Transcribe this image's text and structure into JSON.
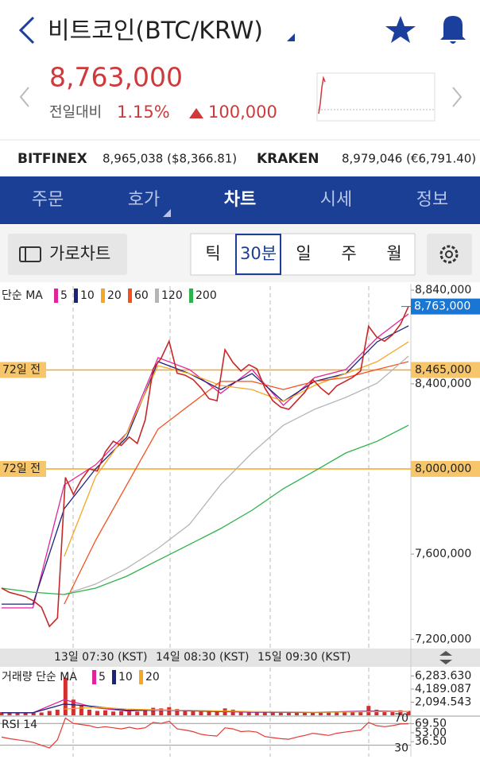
{
  "header": {
    "title": "비트코인(BTC/KRW)"
  },
  "price": {
    "value": "8,763,000",
    "change_label": "전일대비",
    "change_rate": "1.15%",
    "change_amount": "100,000"
  },
  "exchanges": [
    {
      "name": "BITFINEX",
      "price": "8,965,038 ($8,366.81)"
    },
    {
      "name": "KRAKEN",
      "price": "8,979,046 (€6,791.40)"
    }
  ],
  "tabs": [
    "주문",
    "호가",
    "차트",
    "시세",
    "정보"
  ],
  "toolbar": {
    "landscape": "가로차트",
    "periods": [
      "틱",
      "30분",
      "일",
      "주",
      "월"
    ]
  },
  "chart_data": [
    {
      "type": "line",
      "legend_title": "단순 MA",
      "price": {
        "color": "#c62828",
        "values": [
          7440000,
          7420000,
          7410000,
          7400000,
          7380000,
          7350000,
          7260000,
          7300000,
          7960000,
          7880000,
          7950000,
          8000000,
          7990000,
          8080000,
          8130000,
          8110000,
          8150000,
          8120000,
          8230000,
          8470000,
          8520000,
          8600000,
          8450000,
          8440000,
          8420000,
          8380000,
          8330000,
          8320000,
          8560000,
          8500000,
          8460000,
          8490000,
          8470000,
          8380000,
          8320000,
          8290000,
          8280000,
          8320000,
          8360000,
          8420000,
          8380000,
          8350000,
          8390000,
          8410000,
          8430000,
          8460000,
          8670000,
          8620000,
          8600000,
          8630000,
          8680000,
          8763000
        ]
      },
      "series": [
        {
          "name": "5",
          "color": "#e0249a",
          "values": [
            7347000,
            7347000,
            7925000,
            8019000,
            8168000,
            8523000,
            8467000,
            8355000,
            8467000,
            8299000,
            8429000,
            8467000,
            8616000,
            8728000
          ]
        },
        {
          "name": "10",
          "color": "#1a237e",
          "values": [
            7365000,
            7365000,
            7813000,
            8000000,
            8149000,
            8504000,
            8448000,
            8373000,
            8448000,
            8317000,
            8411000,
            8448000,
            8597000,
            8672000
          ]
        },
        {
          "name": "20",
          "color": "#f5a623",
          "values": [
            null,
            null,
            7589000,
            7963000,
            8168000,
            8485000,
            8448000,
            8392000,
            8373000,
            8317000,
            8392000,
            8448000,
            8504000,
            8597000
          ]
        },
        {
          "name": "60",
          "color": "#f4511e",
          "values": [
            null,
            null,
            7365000,
            7664000,
            7925000,
            8187000,
            8299000,
            8411000,
            8411000,
            8373000,
            8411000,
            8429000,
            8467000,
            8504000
          ]
        },
        {
          "name": "120",
          "color": "#b5b5b5",
          "values": [
            null,
            null,
            7410000,
            7459000,
            7533000,
            7627000,
            7739000,
            7926000,
            8075000,
            8205000,
            8280000,
            8336000,
            8403000,
            8530000
          ]
        },
        {
          "name": "200",
          "color": "#2db34a",
          "values": [
            7440000,
            7421000,
            7410000,
            7440000,
            7496000,
            7571000,
            7645000,
            7720000,
            7806000,
            7907000,
            7990000,
            8075000,
            8130000,
            8205000
          ]
        }
      ],
      "ylim": [
        7160000,
        8840000
      ],
      "yticks": [
        {
          "value": 8840000,
          "label": "8,840,000"
        },
        {
          "value": 8400000,
          "label": "8,400,000"
        },
        {
          "value": 7600000,
          "label": "7,600,000"
        },
        {
          "value": 7200000,
          "label": "7,200,000"
        }
      ],
      "reference_lines": [
        {
          "value": 8465000,
          "label": "8,465,000",
          "note": "72일 전"
        },
        {
          "value": 8000000,
          "label": "8,000,000",
          "note": "72일 전"
        }
      ],
      "current": {
        "value": 8763000,
        "label": "8,763,000"
      },
      "x_labels": [
        "13일 07:30 (KST)",
        "14일 08:30 (KST)",
        "15일 09:30 (KST)"
      ]
    },
    {
      "type": "bar",
      "legend_title": "거래량 단순 MA",
      "color": "#d32f2f",
      "values": [
        500,
        450,
        400,
        420,
        380,
        450,
        700,
        900,
        6000,
        2500,
        1500,
        900,
        700,
        800,
        600,
        650,
        700,
        600,
        800,
        1200,
        1100,
        1300,
        1000,
        800,
        700,
        650,
        600,
        700,
        1100,
        900,
        700,
        650,
        600,
        500,
        450,
        400,
        420,
        500,
        450,
        550,
        480,
        430,
        500,
        520,
        560,
        600,
        1500,
        900,
        700,
        650,
        800,
        700
      ],
      "series": [
        {
          "name": "5",
          "color": "#e0249a",
          "values": [
            400,
            400,
            2500,
            1200,
            700,
            900,
            700,
            600,
            500,
            500,
            450,
            600,
            700,
            600
          ]
        },
        {
          "name": "10",
          "color": "#1a237e",
          "values": [
            400,
            400,
            1800,
            1400,
            800,
            800,
            750,
            650,
            550,
            500,
            480,
            550,
            650,
            600
          ]
        },
        {
          "name": "20",
          "color": "#f5a623",
          "values": [
            null,
            null,
            1000,
            1300,
            1000,
            850,
            800,
            700,
            600,
            550,
            500,
            520,
            600,
            600
          ]
        }
      ],
      "ylim": [
        0,
        6600
      ],
      "yticks": [
        {
          "value": 6283.63,
          "label": "6,283.630"
        },
        {
          "value": 4189.087,
          "label": "4,189.087"
        },
        {
          "value": 2094.543,
          "label": "2,094.543"
        }
      ]
    },
    {
      "type": "line",
      "legend_title": "RSI 14",
      "color": "#e53935",
      "values": [
        45,
        42,
        40,
        38,
        35,
        30,
        25,
        40,
        80,
        70,
        68,
        66,
        62,
        64,
        62,
        60,
        63,
        60,
        62,
        72,
        70,
        74,
        60,
        58,
        55,
        50,
        48,
        47,
        62,
        60,
        55,
        56,
        54,
        46,
        44,
        42,
        41,
        45,
        48,
        52,
        50,
        48,
        52,
        54,
        56,
        58,
        72,
        66,
        64,
        66,
        69,
        69.5
      ],
      "levels": [
        70,
        30
      ],
      "ylim": [
        12,
        82
      ],
      "yticks": [
        {
          "value": 69.5,
          "label": "69.50"
        },
        {
          "value": 53,
          "label": "53.00"
        },
        {
          "value": 36.5,
          "label": "36.50"
        }
      ]
    }
  ]
}
